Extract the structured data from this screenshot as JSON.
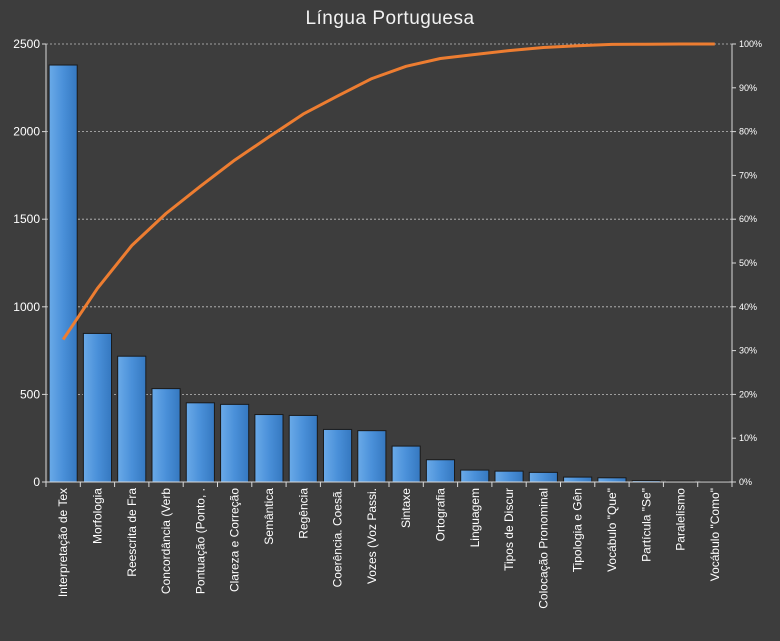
{
  "chart_data": {
    "type": "bar",
    "title": "Língua Portuguesa",
    "categories": [
      "Interpretação de Tex",
      "Morfologia",
      "Reescrita de Fra",
      "Concordância (Verb",
      "Pontuação (Ponto, .",
      "Clareza e Correção",
      "Semântica",
      "Regência",
      "Coerência. Coesã.",
      "Vozes (Voz Passi.",
      "Sintaxe",
      "Ortografia",
      "Linguagem",
      "Tipos de Discur",
      "Colocação Pronominal",
      "Tipologia e Gên",
      "Vocábulo \"Que\"",
      "Partícula \"Se\"",
      "Paralelismo",
      "Vocábulo \"Como\""
    ],
    "series": [
      {
        "type": "bar",
        "values": [
          2380,
          848,
          718,
          533,
          452,
          443,
          385,
          380,
          300,
          293,
          205,
          127,
          68,
          62,
          55,
          28,
          24,
          8,
          5,
          4
        ]
      },
      {
        "type": "line",
        "axis": "right",
        "values": [
          32.5,
          44.2,
          54.0,
          61.3,
          67.5,
          73.5,
          78.8,
          84.0,
          88.1,
          92.1,
          94.9,
          96.7,
          97.6,
          98.5,
          99.2,
          99.6,
          99.9,
          99.95,
          100,
          100
        ]
      }
    ],
    "ylim": [
      0,
      2500
    ],
    "yticks": [
      "0",
      "500",
      "1000",
      "1500",
      "2000",
      "2500"
    ],
    "y2lim": [
      0,
      100
    ],
    "y2ticks": [
      "0%",
      "10%",
      "20%",
      "30%",
      "40%",
      "50%",
      "60%",
      "70%",
      "80%",
      "90%",
      "100%"
    ],
    "grid": true,
    "colors": {
      "bar": "#4a90d9",
      "line": "#ed7d31",
      "background": "#3d3d3d",
      "grid": "#bfbfbf"
    }
  }
}
